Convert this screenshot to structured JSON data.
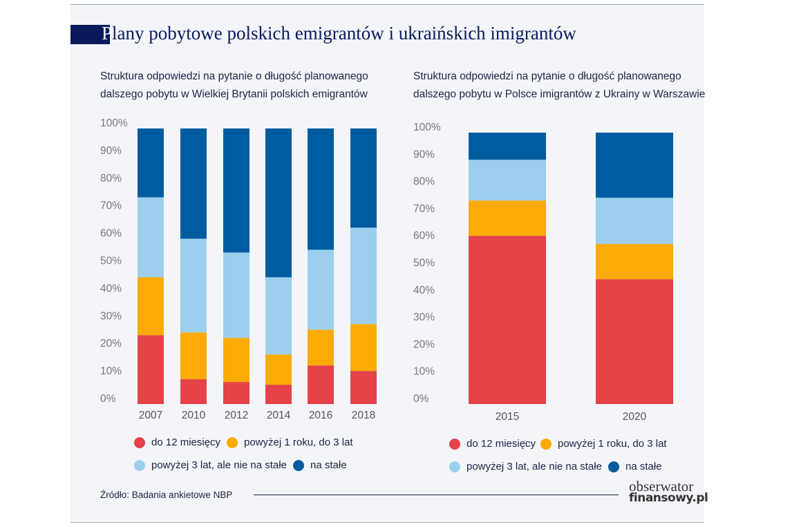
{
  "title_first": "P",
  "title_rest": "lany pobytowe polskich emigrantów i ukraińskich imigrantów",
  "colors": {
    "do_12": "#e5424a",
    "1_3": "#fbab05",
    "3_plus": "#9ccfee",
    "stale": "#005c9f"
  },
  "chart_data": [
    {
      "type": "bar",
      "stacked": true,
      "title": "Struktura odpowiedzi na pytanie o długość planowanego dalszego pobytu w Wielkiej Brytanii polskich emigrantów",
      "categories": [
        "2007",
        "2010",
        "2012",
        "2014",
        "2016",
        "2018"
      ],
      "yticks": [
        "0%",
        "10%",
        "20%",
        "30%",
        "40%",
        "50%",
        "60%",
        "70%",
        "80%",
        "90%",
        "100%"
      ],
      "ylim": [
        0,
        100
      ],
      "grid": false,
      "legend_position": "bottom",
      "series": [
        {
          "name": "do 12 miesięcy",
          "color": "#e5424a",
          "values": [
            25,
            9,
            8,
            7,
            14,
            12
          ]
        },
        {
          "name": "powyżej 1 roku, do 3 lat",
          "color": "#fbab05",
          "values": [
            21,
            17,
            16,
            11,
            13,
            17
          ]
        },
        {
          "name": "powyżej 3 lat, ale nie na stałe",
          "color": "#9ccfee",
          "values": [
            29,
            34,
            31,
            28,
            29,
            35
          ]
        },
        {
          "name": "na stałe",
          "color": "#005c9f",
          "values": [
            25,
            40,
            45,
            54,
            44,
            36
          ]
        }
      ]
    },
    {
      "type": "bar",
      "stacked": true,
      "title": "Struktura odpowiedzi na pytanie o długość planowanego dalszego pobytu w Polsce imigrantów z Ukrainy w Warszawie",
      "categories": [
        "2015",
        "2020"
      ],
      "yticks": [
        "0%",
        "10%",
        "20%",
        "30%",
        "40%",
        "50%",
        "60%",
        "70%",
        "80%",
        "90%",
        "100%"
      ],
      "ylim": [
        0,
        100
      ],
      "grid": false,
      "legend_position": "bottom",
      "series": [
        {
          "name": "do 12 miesięcy",
          "color": "#e5424a",
          "values": [
            62,
            46
          ]
        },
        {
          "name": "powyżej 1 roku, do 3 lat",
          "color": "#fbab05",
          "values": [
            13,
            13
          ]
        },
        {
          "name": "powyżej 3 lat, ale nie na stałe",
          "color": "#9ccfee",
          "values": [
            15,
            17
          ]
        },
        {
          "name": "na stałe",
          "color": "#005c9f",
          "values": [
            10,
            24
          ]
        }
      ]
    }
  ],
  "left_sub": [
    "Struktura odpowiedzi na pytanie o długość planowanego",
    "dalszego pobytu w Wielkiej Brytanii polskich emigrantów"
  ],
  "right_sub": [
    "Struktura odpowiedzi na pytanie o długość planowanego",
    "dalszego pobytu w Polsce imigrantów z Ukrainy w Warszawie"
  ],
  "legend": [
    "do 12 miesięcy",
    "powyżej 1 roku, do 3 lat",
    "powyżej 3 lat, ale nie na stałe",
    "na stałe"
  ],
  "source": "Źródło: Badania ankietowe NBP",
  "logo": [
    "obserwator",
    "finansowy.pl"
  ]
}
